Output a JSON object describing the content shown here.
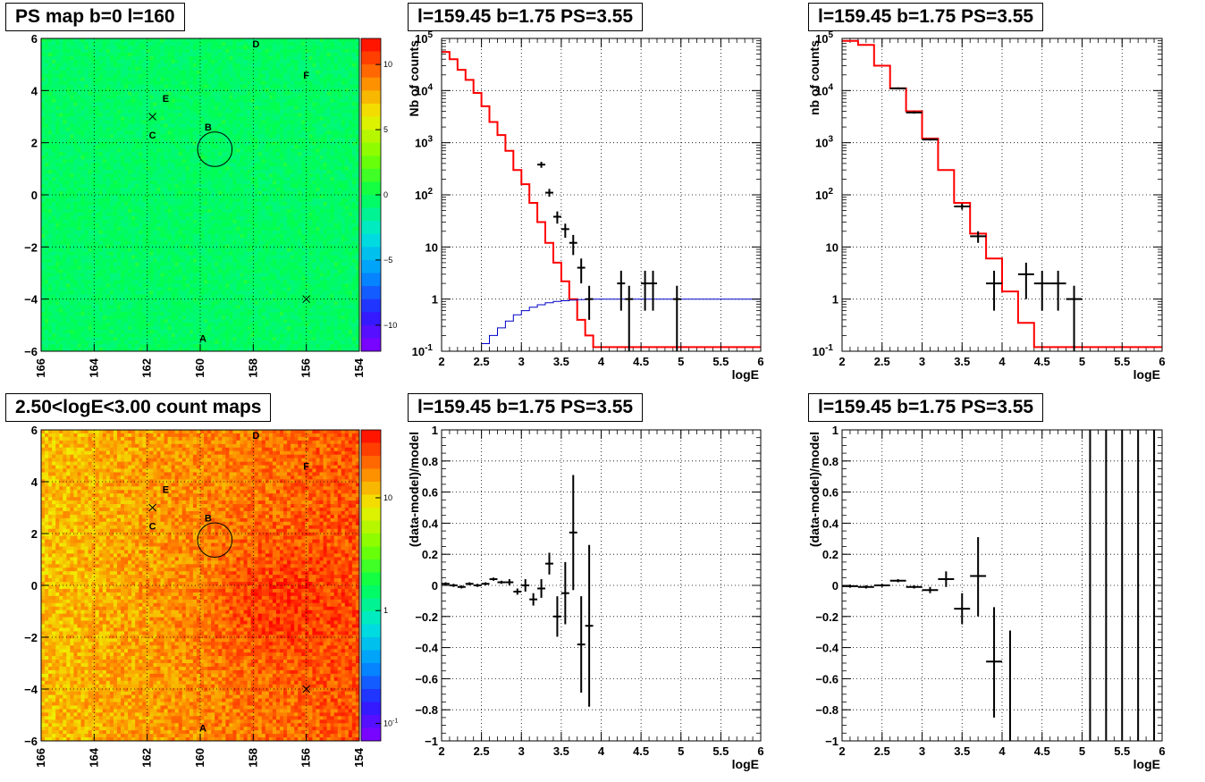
{
  "panels": [
    {
      "title": "PS map b=0 l=160"
    },
    {
      "title": "l=159.45 b=1.75 PS=3.55"
    },
    {
      "title": "l=159.45 b=1.75 PS=3.55"
    },
    {
      "title": "2.50<logE<3.00 count maps"
    },
    {
      "title": "l=159.45 b=1.75 PS=3.55"
    },
    {
      "title": "l=159.45 b=1.75 PS=3.55"
    }
  ],
  "chart_data": [
    {
      "type": "heatmap",
      "title": "PS map b=0 l=160",
      "xlim": [
        166,
        154
      ],
      "ylim": [
        -6,
        6
      ],
      "x_ticks": [
        "166",
        "164",
        "162",
        "160",
        "158",
        "156",
        "154"
      ],
      "y_ticks": [
        "-6",
        "-4",
        "-2",
        "0",
        "2",
        "4",
        "6"
      ],
      "colorbar_ticks": [
        "10",
        "5",
        "0",
        "-5",
        "-10"
      ],
      "colorbar_range": [
        -12,
        12
      ],
      "grid": true,
      "source_labels": [
        {
          "label": "A",
          "l": 159.9,
          "b": -5.5
        },
        {
          "label": "B",
          "l": 159.7,
          "b": 2.6
        },
        {
          "label": "C",
          "l": 161.8,
          "b": 2.3
        },
        {
          "label": "D",
          "l": 157.9,
          "b": 5.8
        },
        {
          "label": "E",
          "l": 161.3,
          "b": 3.7
        },
        {
          "label": "F",
          "l": 156.0,
          "b": 4.6
        }
      ],
      "markers": [
        {
          "type": "x",
          "l": 161.8,
          "b": 3.0
        },
        {
          "type": "x",
          "l": 156.0,
          "b": -4.0
        },
        {
          "type": "circle",
          "l": 159.45,
          "b": 1.75,
          "r": 0.5
        }
      ]
    },
    {
      "type": "line",
      "title": "l=159.45 b=1.75 PS=3.55",
      "xlabel": "logE",
      "ylabel": "Nb of counts",
      "log_y": true,
      "xlim": [
        2,
        6
      ],
      "ylim": [
        0.1,
        100000
      ],
      "grid": true,
      "x_ticks": [
        "2",
        "2.5",
        "3",
        "3.5",
        "4",
        "4.5",
        "5",
        "5.5",
        "6"
      ],
      "y_ticks": [
        {
          "v": 0.1,
          "t": "10",
          "sup": "-1"
        },
        {
          "v": 1,
          "t": "1"
        },
        {
          "v": 10,
          "t": "10"
        },
        {
          "v": 100,
          "t": "10",
          "sup": "2"
        },
        {
          "v": 1000,
          "t": "10",
          "sup": "3"
        },
        {
          "v": 10000,
          "t": "10",
          "sup": "4"
        },
        {
          "v": 100000,
          "t": "10",
          "sup": "5"
        }
      ],
      "series": [
        {
          "color": "#ff0000",
          "style": "step",
          "bin_width": 0.1,
          "x": [
            2.05,
            2.15,
            2.25,
            2.35,
            2.45,
            2.55,
            2.65,
            2.75,
            2.85,
            2.95,
            3.05,
            3.15,
            3.25,
            3.35,
            3.45,
            3.55,
            3.65,
            3.75,
            3.85,
            3.95,
            4.05,
            4.15,
            4.25,
            4.35,
            4.45,
            4.55,
            4.65,
            4.75,
            4.85,
            4.95,
            5.05,
            5.15,
            5.25,
            5.35,
            5.45,
            5.55,
            5.65,
            5.75,
            5.85,
            5.95
          ],
          "y": [
            55000,
            40000,
            25000,
            16000,
            9000,
            5000,
            2500,
            1400,
            700,
            300,
            160,
            70,
            30,
            12,
            5,
            2.2,
            1,
            0.4,
            0.2,
            0.12,
            0.12,
            0.12,
            0.12,
            0.12,
            0.12,
            0.12,
            0.12,
            0.12,
            0.12,
            0.12,
            0.12,
            0.12,
            0.12,
            0.12,
            0.12,
            0.12,
            0.12,
            0.12,
            0.12,
            0.12
          ]
        },
        {
          "color": "#0000cc",
          "style": "step",
          "bin_width": 0.1,
          "x": [
            2.55,
            2.65,
            2.75,
            2.85,
            2.95,
            3.05,
            3.15,
            3.25,
            3.35,
            3.45,
            3.55,
            3.65,
            3.75,
            3.85,
            3.95,
            4.05,
            4.15,
            4.25,
            4.35,
            4.45,
            4.55,
            4.65,
            4.75,
            4.85,
            4.95,
            5.05,
            5.15,
            5.25,
            5.35,
            5.45,
            5.55,
            5.65,
            5.75,
            5.85,
            5.95
          ],
          "y": [
            0.14,
            0.2,
            0.28,
            0.38,
            0.5,
            0.6,
            0.7,
            0.78,
            0.85,
            0.9,
            0.93,
            0.96,
            0.98,
            0.99,
            1,
            1,
            1,
            1,
            1,
            1,
            1,
            1,
            1,
            1,
            1,
            1,
            1,
            1,
            1,
            1,
            1,
            1,
            1,
            1,
            1
          ]
        },
        {
          "color": "#000000",
          "style": "errorbar",
          "xerr": 0.05,
          "x": [
            3.25,
            3.35,
            3.45,
            3.55,
            3.65,
            3.75,
            3.85,
            4.25,
            4.35,
            4.55,
            4.65,
            4.95
          ],
          "y": [
            380,
            110,
            38,
            22,
            12,
            4,
            1,
            2,
            1,
            2,
            2,
            1
          ],
          "ylo": [
            330,
            92,
            28,
            15,
            7,
            2,
            0.4,
            0.6,
            0.1,
            0.6,
            0.6,
            0.1
          ],
          "yhi": [
            430,
            130,
            48,
            28,
            17,
            6,
            1.8,
            3.5,
            1.8,
            3.5,
            3.5,
            1.8
          ]
        }
      ]
    },
    {
      "type": "line",
      "title": "l=159.45 b=1.75 PS=3.55",
      "xlabel": "logE",
      "ylabel": "nb of counts",
      "log_y": true,
      "xlim": [
        2,
        6
      ],
      "ylim": [
        0.1,
        100000
      ],
      "grid": true,
      "x_ticks": [
        "2",
        "2.5",
        "3",
        "3.5",
        "4",
        "4.5",
        "5",
        "5.5",
        "6"
      ],
      "y_ticks": [
        {
          "v": 0.1,
          "t": "10",
          "sup": "-1"
        },
        {
          "v": 1,
          "t": "1"
        },
        {
          "v": 10,
          "t": "10"
        },
        {
          "v": 100,
          "t": "10",
          "sup": "2"
        },
        {
          "v": 1000,
          "t": "10",
          "sup": "3"
        },
        {
          "v": 10000,
          "t": "10",
          "sup": "4"
        },
        {
          "v": 100000,
          "t": "10",
          "sup": "5"
        }
      ],
      "series": [
        {
          "color": "#ff0000",
          "style": "step",
          "bin_width": 0.2,
          "x": [
            2.1,
            2.3,
            2.5,
            2.7,
            2.9,
            3.1,
            3.3,
            3.5,
            3.7,
            3.9,
            4.1,
            4.3,
            4.5,
            4.7,
            4.9,
            5.1,
            5.3,
            5.5,
            5.7,
            5.9
          ],
          "y": [
            90000,
            75000,
            30000,
            11000,
            4000,
            1200,
            300,
            70,
            18,
            6,
            1.4,
            0.35,
            0.12,
            0.12,
            0.12,
            0.12,
            0.12,
            0.12,
            0.12,
            0.12
          ]
        },
        {
          "color": "#000000",
          "style": "errorbar",
          "xerr": 0.1,
          "x": [
            2.7,
            2.9,
            3.1,
            3.5,
            3.7,
            3.9,
            4.3,
            4.5,
            4.7,
            4.9
          ],
          "y": [
            11000,
            3800,
            1150,
            60,
            16,
            2,
            3,
            2,
            2,
            1
          ],
          "ylo": [
            10500,
            3600,
            1100,
            52,
            12,
            0.6,
            1,
            0.6,
            0.6,
            0.1
          ],
          "yhi": [
            11500,
            4000,
            1200,
            68,
            20,
            3.5,
            5,
            3.5,
            3.5,
            1.8
          ]
        }
      ]
    },
    {
      "type": "heatmap",
      "title": "2.50<logE<3.00 count maps",
      "xlim": [
        166,
        154
      ],
      "ylim": [
        -6,
        6
      ],
      "x_ticks": [
        "166",
        "164",
        "162",
        "160",
        "158",
        "156",
        "154"
      ],
      "y_ticks": [
        "-6",
        "-4",
        "-2",
        "0",
        "2",
        "4",
        "6"
      ],
      "log_colorbar": true,
      "colorbar_ticks": [
        {
          "v": 10,
          "t": "10"
        },
        {
          "v": 1,
          "t": "1"
        },
        {
          "v": 0.1,
          "t": "10",
          "sup": "-1"
        }
      ],
      "colorbar_range": [
        0.07,
        40
      ],
      "grid": true,
      "source_labels": [
        {
          "label": "A",
          "l": 159.9,
          "b": -5.5
        },
        {
          "label": "B",
          "l": 159.7,
          "b": 2.6
        },
        {
          "label": "C",
          "l": 161.8,
          "b": 2.3
        },
        {
          "label": "D",
          "l": 157.9,
          "b": 5.8
        },
        {
          "label": "E",
          "l": 161.3,
          "b": 3.7
        },
        {
          "label": "F",
          "l": 156.0,
          "b": 4.6
        }
      ],
      "markers": [
        {
          "type": "x",
          "l": 161.8,
          "b": 3.0
        },
        {
          "type": "x",
          "l": 156.0,
          "b": -4.0
        },
        {
          "type": "circle",
          "l": 159.45,
          "b": 1.75,
          "r": 0.5
        }
      ]
    },
    {
      "type": "scatter",
      "title": "l=159.45 b=1.75 PS=3.55",
      "xlabel": "logE",
      "ylabel": "(data-model)/model",
      "xlim": [
        2,
        6
      ],
      "ylim": [
        -1,
        1
      ],
      "grid": true,
      "x_ticks": [
        "2",
        "2.5",
        "3",
        "3.5",
        "4",
        "4.5",
        "5",
        "5.5",
        "6"
      ],
      "y_ticks": [
        "-1",
        "-0.8",
        "-0.6",
        "-0.4",
        "-0.2",
        "0",
        "0.2",
        "0.4",
        "0.6",
        "0.8",
        "1"
      ],
      "series": [
        {
          "color": "#000000",
          "style": "errorbar",
          "xerr": 0.05,
          "x": [
            2.05,
            2.15,
            2.25,
            2.35,
            2.45,
            2.55,
            2.65,
            2.75,
            2.85,
            2.95,
            3.05,
            3.15,
            3.25,
            3.35,
            3.45,
            3.55,
            3.65,
            3.75,
            3.85
          ],
          "y": [
            0.01,
            0,
            -0.01,
            0.01,
            0,
            0.01,
            0.04,
            0.02,
            0.02,
            -0.04,
            0,
            -0.09,
            -0.02,
            0.14,
            -0.2,
            -0.05,
            0.34,
            -0.38,
            -0.26
          ],
          "ylo": [
            0,
            -0.01,
            -0.02,
            0,
            -0.01,
            0,
            0.03,
            0.01,
            0,
            -0.06,
            -0.04,
            -0.13,
            -0.08,
            0.07,
            -0.33,
            -0.25,
            -0.03,
            -0.69,
            -0.78
          ],
          "yhi": [
            0.02,
            0.01,
            0,
            0.02,
            0.01,
            0.02,
            0.05,
            0.03,
            0.04,
            -0.02,
            0.04,
            -0.05,
            0.04,
            0.21,
            -0.07,
            0.15,
            0.71,
            -0.07,
            0.26
          ]
        }
      ]
    },
    {
      "type": "scatter",
      "title": "l=159.45 b=1.75 PS=3.55",
      "xlabel": "logE",
      "ylabel": "(data-model)/model",
      "xlim": [
        2,
        6
      ],
      "ylim": [
        -1,
        1
      ],
      "grid": true,
      "x_ticks": [
        "2",
        "2.5",
        "3",
        "3.5",
        "4",
        "4.5",
        "5",
        "5.5",
        "6"
      ],
      "y_ticks": [
        "-1",
        "-0.8",
        "-0.6",
        "-0.4",
        "-0.2",
        "0",
        "0.2",
        "0.4",
        "0.6",
        "0.8",
        "1"
      ],
      "series": [
        {
          "color": "#000000",
          "style": "errorbar",
          "xerr": 0.1,
          "x": [
            2.1,
            2.3,
            2.5,
            2.7,
            2.9,
            3.1,
            3.3,
            3.5,
            3.7,
            3.9,
            4.1,
            5.1,
            5.3,
            5.5,
            5.7,
            5.9
          ],
          "y": [
            -0.005,
            -0.01,
            0,
            0.03,
            -0.01,
            -0.03,
            0.04,
            -0.15,
            0.06,
            -0.49,
            null,
            null,
            null,
            null,
            null,
            null
          ],
          "ylo": [
            -0.015,
            -0.02,
            -0.01,
            0.02,
            -0.02,
            -0.05,
            -0.01,
            -0.25,
            -0.2,
            -0.85,
            -1,
            -1,
            -1,
            -1,
            -1,
            -1
          ],
          "yhi": [
            0.005,
            0,
            0.01,
            0.04,
            0,
            -0.01,
            0.09,
            -0.05,
            0.31,
            -0.14,
            -0.29,
            1,
            1,
            1,
            1,
            1
          ]
        }
      ]
    }
  ]
}
